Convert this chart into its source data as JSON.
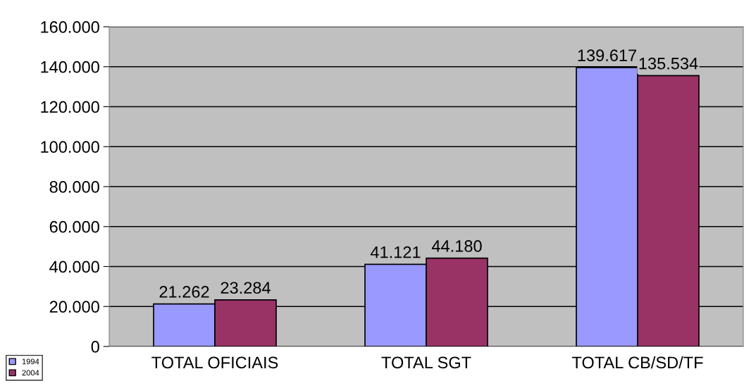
{
  "chart_data": {
    "type": "bar",
    "categories": [
      "TOTAL OFICIAIS",
      "TOTAL SGT",
      "TOTAL CB/SD/TF"
    ],
    "series": [
      {
        "name": "1994",
        "color": "#9999ff",
        "values": [
          21262,
          41121,
          139617
        ],
        "value_labels": [
          "21.262",
          "41.121",
          "139.617"
        ]
      },
      {
        "name": "2004",
        "color": "#993366",
        "values": [
          23284,
          44180,
          135534
        ],
        "value_labels": [
          "23.284",
          "44.180",
          "135.534"
        ]
      }
    ],
    "ylim": [
      0,
      160000
    ],
    "yticks": [
      0,
      {
        "value": 20000,
        "label": "20.000"
      },
      {
        "value": 40000,
        "label": "40.000"
      },
      {
        "value": 60000,
        "label": "60.000"
      },
      {
        "value": 80000,
        "label": "80.000"
      },
      {
        "value": 100000,
        "label": "100.000"
      },
      {
        "value": 120000,
        "label": "120.000"
      },
      {
        "value": 140000,
        "label": "140.000"
      },
      {
        "value": 160000,
        "label": "160.000"
      }
    ],
    "grid": "y",
    "legend": "bottom left"
  }
}
